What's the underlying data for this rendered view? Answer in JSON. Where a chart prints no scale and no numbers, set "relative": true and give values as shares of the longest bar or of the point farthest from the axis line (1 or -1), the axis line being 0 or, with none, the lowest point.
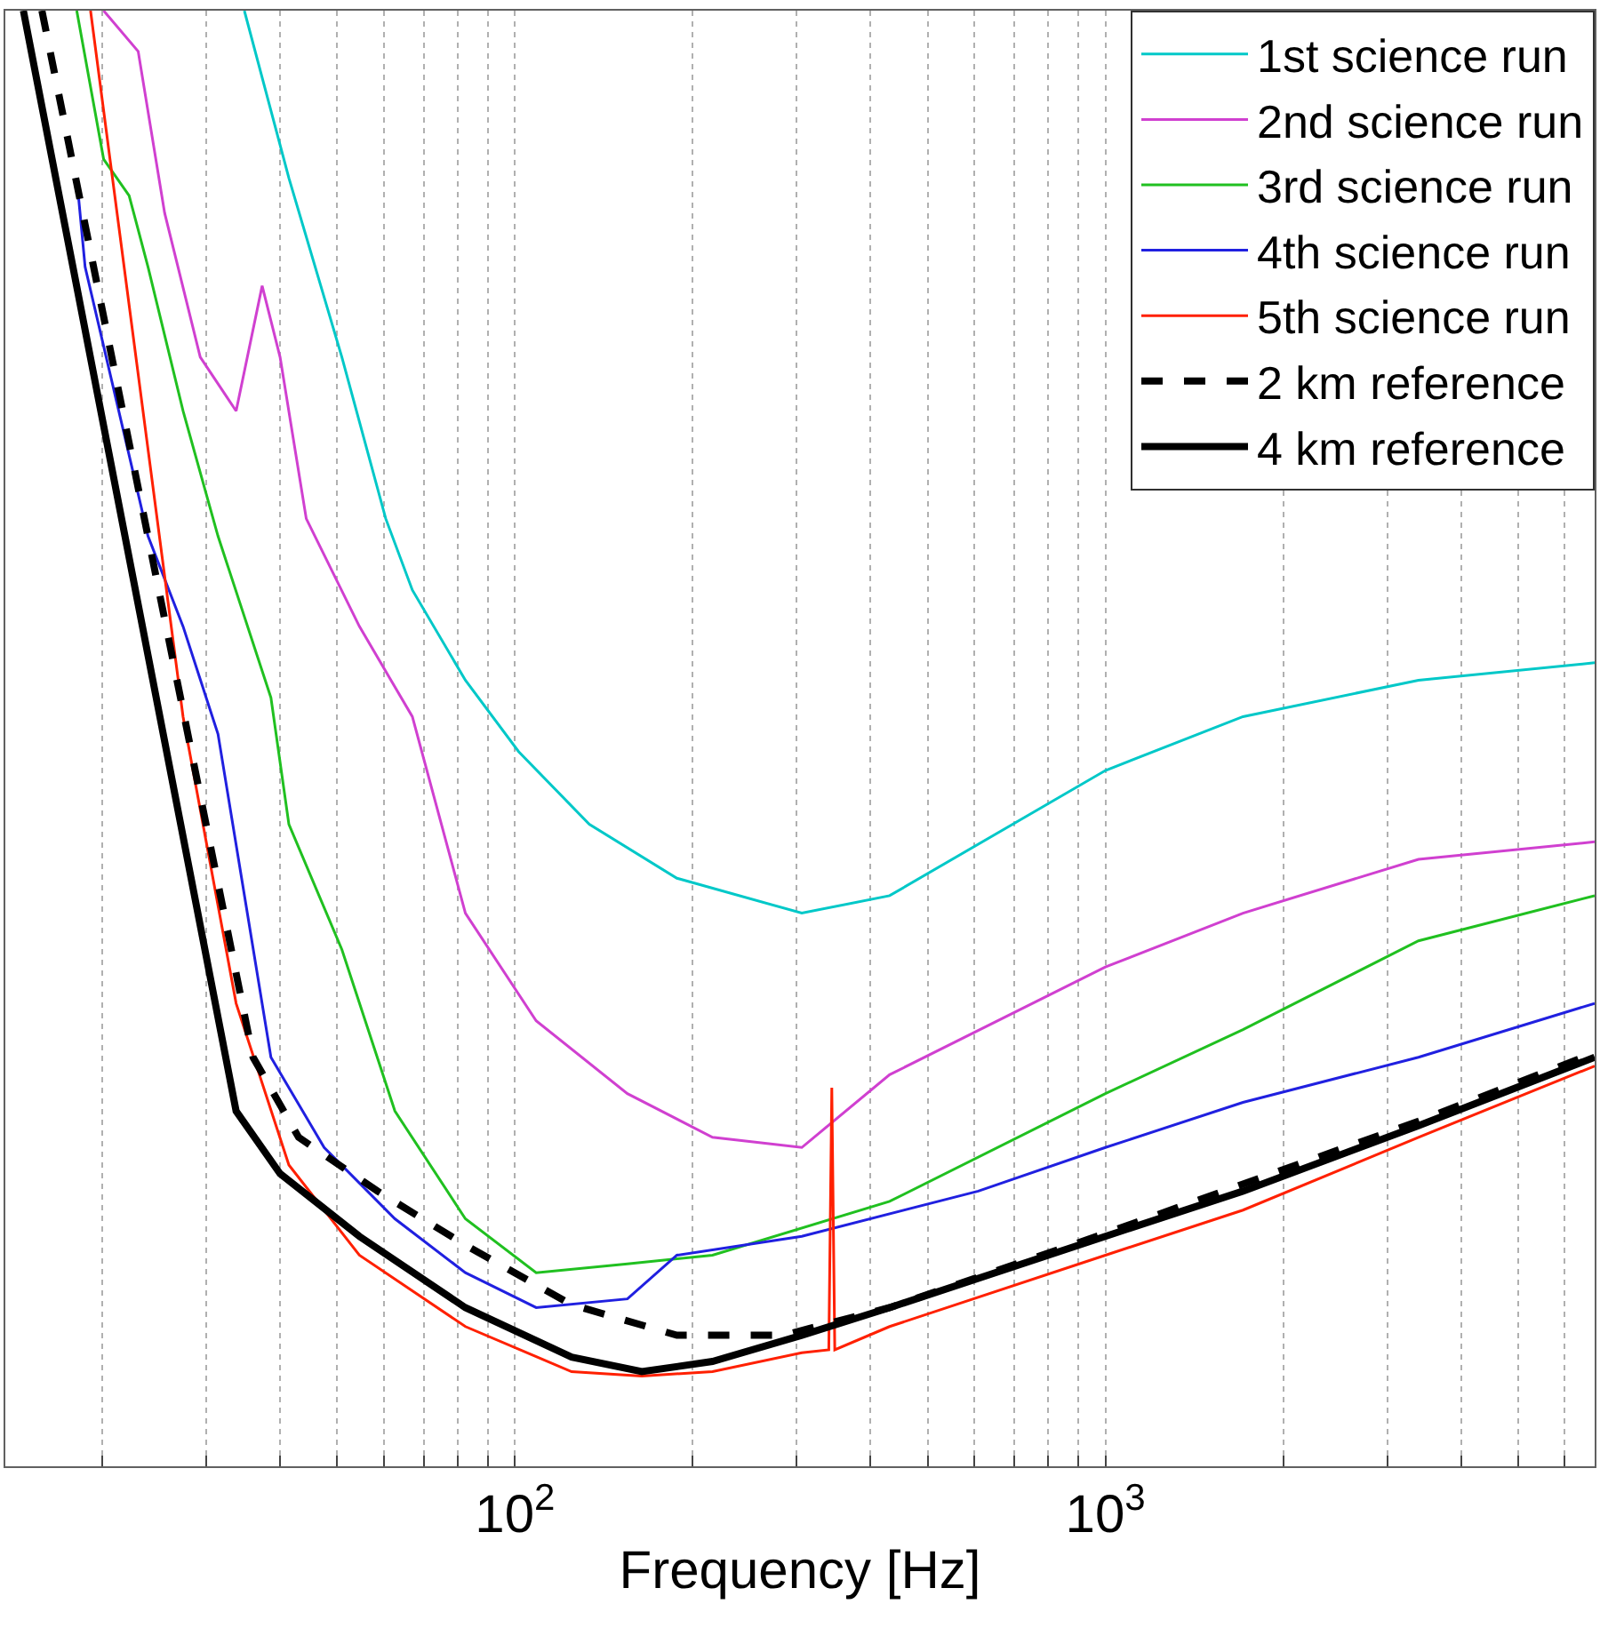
{
  "chart_data": {
    "type": "line",
    "relative": true,
    "xlabel": "Frequency [Hz]",
    "log": "x",
    "grid": "x",
    "legend": "top right",
    "xlim": [
      13.7,
      6740
    ],
    "xticks": [
      {
        "value": 20,
        "label": null
      },
      {
        "value": 30,
        "label": null
      },
      {
        "value": 40,
        "label": null
      },
      {
        "value": 50,
        "label": null
      },
      {
        "value": 60,
        "label": null
      },
      {
        "value": 70,
        "label": null
      },
      {
        "value": 80,
        "label": null
      },
      {
        "value": 90,
        "label": null
      },
      {
        "value": 100,
        "label": "10$^{2}$"
      },
      {
        "value": 200,
        "label": null
      },
      {
        "value": 300,
        "label": null
      },
      {
        "value": 400,
        "label": null
      },
      {
        "value": 500,
        "label": null
      },
      {
        "value": 600,
        "label": null
      },
      {
        "value": 700,
        "label": null
      },
      {
        "value": 800,
        "label": null
      },
      {
        "value": 900,
        "label": null
      },
      {
        "value": 1000,
        "label": "10$^{3}$"
      },
      {
        "value": 2000,
        "label": null
      },
      {
        "value": 3000,
        "label": null
      },
      {
        "value": 4000,
        "label": null
      },
      {
        "value": 5000,
        "label": null
      },
      {
        "value": 6000,
        "label": null
      }
    ],
    "series": [
      {
        "name": "1st science run",
        "color": "#00c8c8",
        "line_style": "solid",
        "x": [
          34.8,
          41.4,
          50.9,
          60.4,
          67,
          82.4,
          101.4,
          133.6,
          188,
          306,
          431,
          1000,
          1710,
          3390,
          6740
        ],
        "values": [
          1.0,
          0.885,
          0.762,
          0.651,
          0.602,
          0.54,
          0.491,
          0.441,
          0.404,
          0.38,
          0.392,
          0.478,
          0.515,
          0.54,
          0.552
        ]
      },
      {
        "name": "2nd science run",
        "color": "#d040d0",
        "line_style": "solid",
        "x": [
          20.1,
          23.0,
          25.5,
          29.3,
          33.7,
          37.3,
          40,
          44.3,
          54.5,
          67,
          82.4,
          108.6,
          155,
          216,
          306,
          431,
          1000,
          1710,
          3390,
          6740
        ],
        "values": [
          1.0,
          0.972,
          0.861,
          0.762,
          0.725,
          0.811,
          0.762,
          0.651,
          0.577,
          0.515,
          0.38,
          0.306,
          0.256,
          0.226,
          0.219,
          0.269,
          0.343,
          0.38,
          0.417,
          0.429
        ]
      },
      {
        "name": "3rd science run",
        "color": "#20c020",
        "line_style": "solid",
        "x": [
          18.1,
          20.1,
          22.2,
          23.9,
          27.4,
          31.4,
          38.6,
          41.4,
          50.9,
          62.6,
          82.4,
          108.6,
          155,
          216,
          431,
          1000,
          1710,
          3390,
          6740
        ],
        "values": [
          1.0,
          0.898,
          0.873,
          0.824,
          0.725,
          0.639,
          0.528,
          0.441,
          0.355,
          0.244,
          0.17,
          0.133,
          0.139,
          0.145,
          0.182,
          0.256,
          0.3,
          0.361,
          0.392
        ]
      },
      {
        "name": "4th science run",
        "color": "#2020e0",
        "line_style": "solid",
        "x": [
          18.1,
          18.7,
          23.9,
          27.4,
          31.4,
          38.6,
          47.5,
          62.6,
          82.4,
          108.6,
          155,
          188,
          306,
          609,
          1000,
          1710,
          3390,
          6740
        ],
        "values": [
          0.885,
          0.824,
          0.639,
          0.577,
          0.503,
          0.281,
          0.219,
          0.17,
          0.133,
          0.109,
          0.115,
          0.145,
          0.158,
          0.189,
          0.219,
          0.25,
          0.281,
          0.318
        ]
      },
      {
        "name": "5th science run",
        "color": "#ff2000",
        "line_style": "solid",
        "x": [
          19.1,
          27.4,
          33.7,
          41.4,
          54.5,
          82.4,
          124.7,
          164,
          216,
          306,
          340,
          344,
          348,
          431,
          1000,
          1710,
          3390,
          6740
        ],
        "values": [
          1.0,
          0.515,
          0.318,
          0.207,
          0.145,
          0.096,
          0.065,
          0.062,
          0.065,
          0.078,
          0.08,
          0.26,
          0.08,
          0.096,
          0.145,
          0.176,
          0.226,
          0.275
        ]
      },
      {
        "name": "2 km reference",
        "color": "#000000",
        "line_style": "dashed",
        "x": [
          15.8,
          36,
          43,
          58.5,
          82.4,
          124.7,
          188,
          285,
          431,
          1000,
          3390,
          6740
        ],
        "values": [
          1.0,
          0.281,
          0.226,
          0.189,
          0.152,
          0.111,
          0.09,
          0.09,
          0.109,
          0.16,
          0.237,
          0.284
        ]
      },
      {
        "name": "4 km reference",
        "color": "#000000",
        "line_style": "solid",
        "x": [
          14.7,
          33.7,
          40,
          54.5,
          82.4,
          124.7,
          164,
          216,
          306,
          431,
          1000,
          1710,
          3390,
          6740
        ],
        "values": [
          1.0,
          0.244,
          0.201,
          0.158,
          0.109,
          0.075,
          0.065,
          0.072,
          0.09,
          0.109,
          0.158,
          0.189,
          0.234,
          0.281
        ]
      }
    ]
  }
}
